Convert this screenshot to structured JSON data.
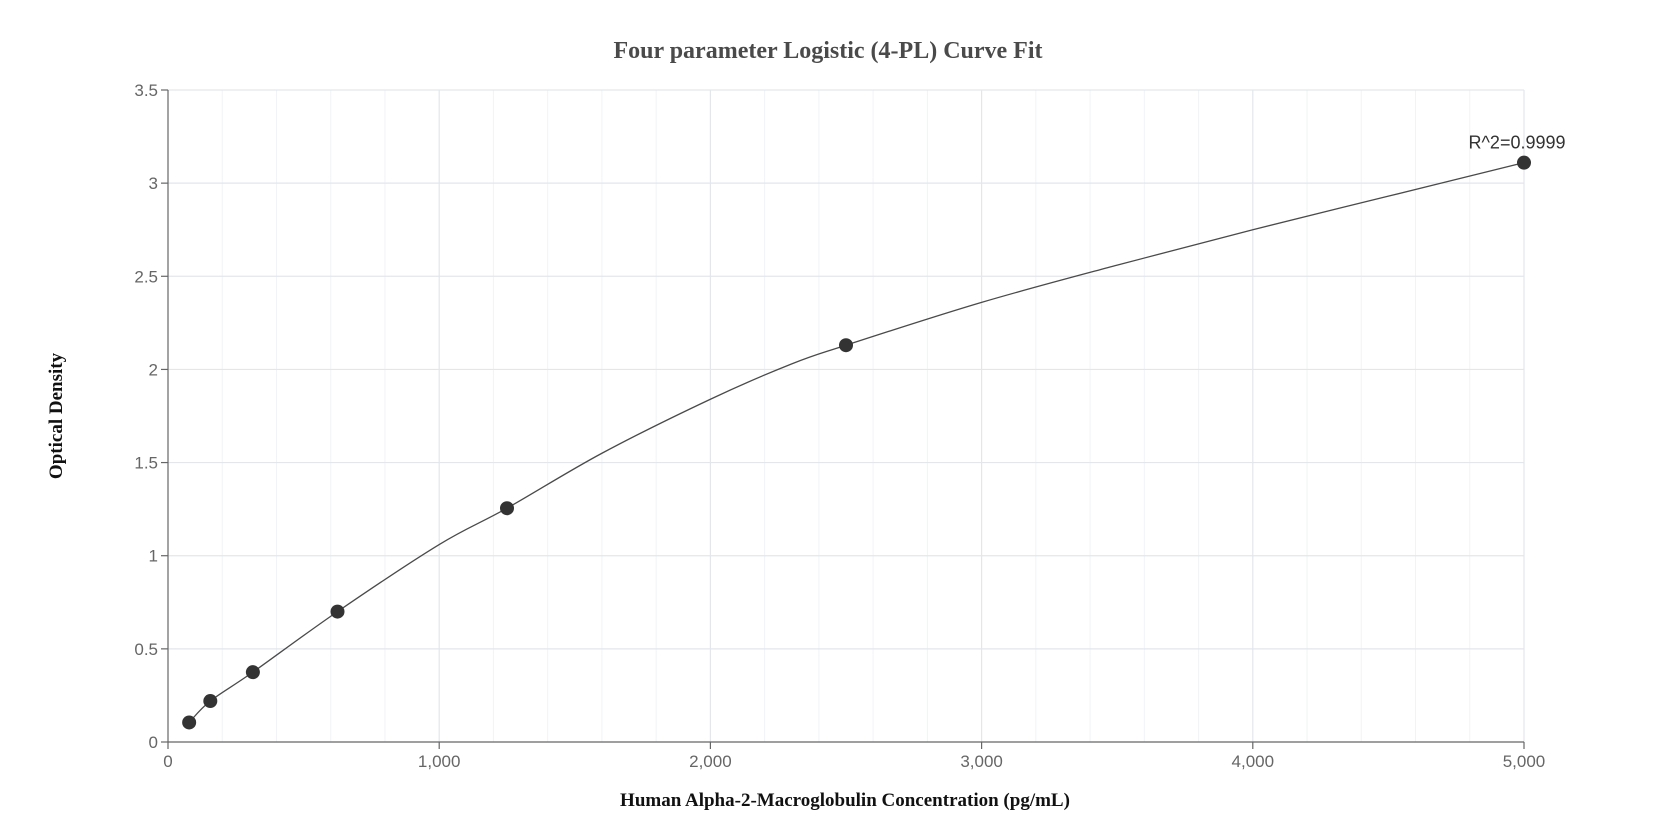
{
  "chart_data": {
    "type": "scatter",
    "title": "Four parameter Logistic (4-PL) Curve Fit",
    "xlabel": "Human Alpha-2-Macroglobulin Concentration (pg/mL)",
    "ylabel": "Optical Density",
    "xlim": [
      0,
      5000
    ],
    "ylim": [
      0,
      3.5
    ],
    "x_ticks": [
      0,
      1000,
      2000,
      3000,
      4000,
      5000
    ],
    "x_tick_labels": [
      "0",
      "1,000",
      "2,000",
      "3,000",
      "4,000",
      "5,000"
    ],
    "y_ticks": [
      0,
      0.5,
      1,
      1.5,
      2,
      2.5,
      3,
      3.5
    ],
    "y_tick_labels": [
      "0",
      "0.5",
      "1",
      "1.5",
      "2",
      "2.5",
      "3",
      "3.5"
    ],
    "grid": true,
    "series": [
      {
        "points": [
          {
            "x": 78,
            "y": 0.105
          },
          {
            "x": 156,
            "y": 0.22
          },
          {
            "x": 313,
            "y": 0.375
          },
          {
            "x": 625,
            "y": 0.7
          },
          {
            "x": 1250,
            "y": 1.255
          },
          {
            "x": 2500,
            "y": 2.13
          },
          {
            "x": 5000,
            "y": 3.11
          }
        ],
        "color": "#333333"
      }
    ],
    "fit_curve": {
      "x": [
        78,
        156,
        313,
        625,
        1000,
        1250,
        1600,
        2000,
        2300,
        2500,
        3000,
        3500,
        4000,
        4500,
        5000
      ],
      "y": [
        0.105,
        0.22,
        0.375,
        0.7,
        1.06,
        1.255,
        1.55,
        1.84,
        2.03,
        2.13,
        2.36,
        2.56,
        2.75,
        2.93,
        3.11
      ]
    },
    "annotations": [
      {
        "text": "R^2=0.9999",
        "x": 5000,
        "y": 3.11
      }
    ]
  }
}
